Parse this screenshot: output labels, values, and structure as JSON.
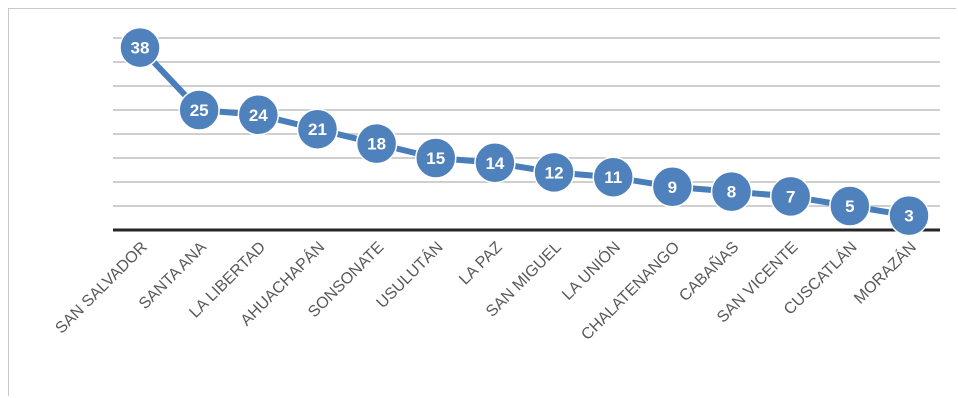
{
  "chart_data": {
    "type": "line",
    "title": "",
    "xlabel": "",
    "ylabel": "",
    "categories": [
      "SAN SALVADOR",
      "SANTA ANA",
      "LA LIBERTAD",
      "AHUACHAPÁN",
      "SONSONATE",
      "USULUTÁN",
      "LA PAZ",
      "SAN MIGUEL",
      "LA UNIÓN",
      "CHALATENANGO",
      "CABAÑAS",
      "SAN VICENTE",
      "CUSCATLÁN",
      "MORAZÁN"
    ],
    "values": [
      38,
      25,
      24,
      21,
      18,
      15,
      14,
      12,
      11,
      9,
      8,
      7,
      5,
      3
    ],
    "ylim": [
      0,
      40
    ],
    "y_axis_visible": false,
    "grid": true,
    "legend": "none",
    "colors": {
      "line": "#4a7ebb",
      "marker": "#4f81bd",
      "marker_border": "#ffffff",
      "label": "#ffffff",
      "gridline": "#bfbfbf",
      "axis": "#262626",
      "tick_label": "#595959"
    }
  }
}
